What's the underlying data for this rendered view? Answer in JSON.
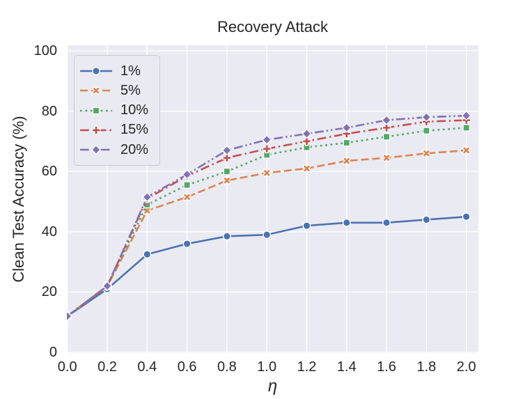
{
  "chart_data": {
    "type": "line",
    "title": "Recovery Attack",
    "xlabel": "η",
    "ylabel": "Clean Test Accuracy (%)",
    "x": [
      0.0,
      0.2,
      0.4,
      0.6,
      0.8,
      1.0,
      1.2,
      1.4,
      1.6,
      1.8,
      2.0
    ],
    "x_tick_labels": [
      "0.0",
      "0.2",
      "0.4",
      "0.6",
      "0.8",
      "1.0",
      "1.2",
      "1.4",
      "1.6",
      "1.8",
      "2.0"
    ],
    "y_ticks": [
      0,
      20,
      40,
      60,
      80,
      100
    ],
    "y_tick_labels": [
      "0",
      "20",
      "40",
      "60",
      "80",
      "100"
    ],
    "xlim": [
      0.0,
      2.06
    ],
    "ylim": [
      0,
      100
    ],
    "grid": true,
    "legend_position": "upper left",
    "background_color": "#EAEAF2",
    "grid_color": "#FFFFFF",
    "text_color": "#262626",
    "series": [
      {
        "name": "1%",
        "color": "#4C72B0",
        "linestyle": "solid",
        "marker": "circle",
        "values": [
          12,
          21,
          32.5,
          36,
          38.5,
          39,
          42,
          43,
          43,
          44,
          45
        ]
      },
      {
        "name": "5%",
        "color": "#DD8452",
        "linestyle": "dashed",
        "marker": "x",
        "values": [
          12,
          22,
          47,
          51.5,
          57,
          59.5,
          61,
          63.5,
          64.5,
          66,
          67
        ]
      },
      {
        "name": "10%",
        "color": "#55A868",
        "linestyle": "dotted",
        "marker": "square",
        "values": [
          12,
          22,
          49,
          55.5,
          60,
          65.5,
          68,
          69.5,
          71.5,
          73.5,
          74.5
        ]
      },
      {
        "name": "15%",
        "color": "#C44E52",
        "linestyle": "dashdot",
        "marker": "plus",
        "values": [
          12,
          22,
          51,
          58.5,
          64.5,
          67.5,
          70,
          72.5,
          74.5,
          76.5,
          77
        ]
      },
      {
        "name": "20%",
        "color": "#8172B3",
        "linestyle": "dashdotdot",
        "marker": "diamond",
        "values": [
          12,
          22,
          51.5,
          59,
          67,
          70.5,
          72.5,
          74.5,
          77,
          78,
          78.5
        ]
      }
    ]
  }
}
